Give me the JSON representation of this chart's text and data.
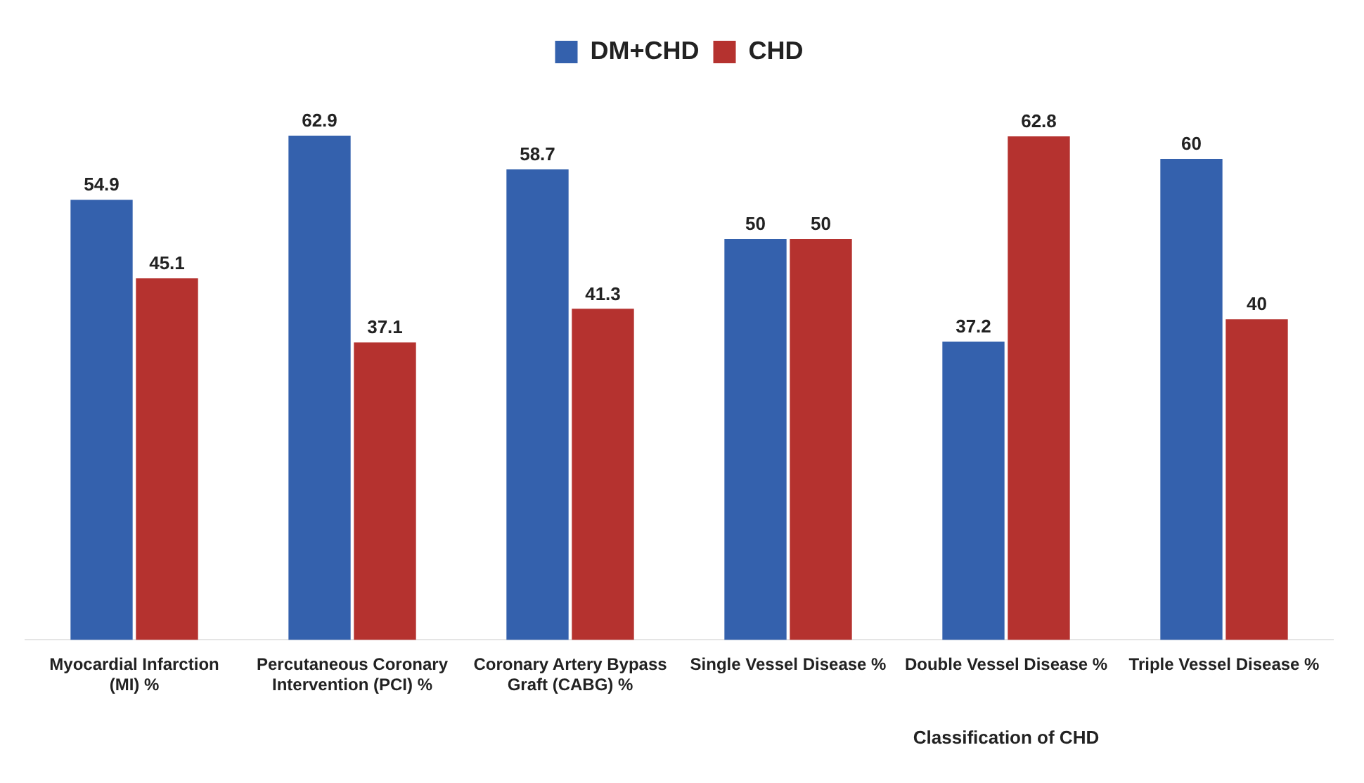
{
  "chart_data": {
    "type": "bar",
    "categories": [
      "Myocardial Infarction (MI) %",
      "Percutaneous Coronary Intervention (PCI) %",
      "Coronary Artery Bypass Graft (CABG) %",
      "Single Vessel Disease %",
      "Double Vessel Disease %",
      "Triple Vessel Disease %"
    ],
    "series": [
      {
        "name": "DM+CHD",
        "color": "#3461ad",
        "values": [
          54.9,
          62.9,
          58.7,
          50,
          37.2,
          60
        ]
      },
      {
        "name": "CHD",
        "color": "#b5322f",
        "values": [
          45.1,
          37.1,
          41.3,
          50,
          62.8,
          40
        ]
      }
    ],
    "data_labels": true,
    "legend": "top",
    "grid": false,
    "annotations": [
      "Classification of CHD"
    ]
  }
}
